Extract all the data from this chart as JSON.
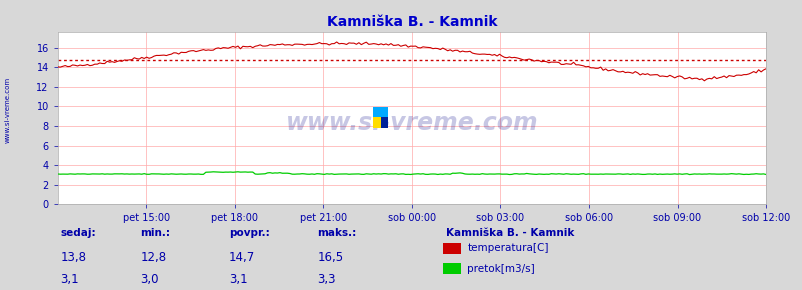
{
  "title": "Kamniška B. - Kamnik",
  "title_color": "#0000cc",
  "background_color": "#d8d8d8",
  "plot_bg_color": "#ffffff",
  "grid_color": "#ffaaaa",
  "watermark": "www.si-vreme.com",
  "xlabel_ticks": [
    "pet 15:00",
    "pet 18:00",
    "pet 21:00",
    "sob 00:00",
    "sob 03:00",
    "sob 06:00",
    "sob 09:00",
    "sob 12:00"
  ],
  "ylim_temp": [
    0,
    17.6
  ],
  "xlim": [
    0,
    287
  ],
  "temp_color": "#cc0000",
  "flow_color": "#00cc00",
  "avg_line_color": "#cc0000",
  "avg_value": 14.7,
  "sidebar_text": "www.si-vreme.com",
  "sidebar_color": "#0000aa",
  "legend_title": "Kamniška B. - Kamnik",
  "legend_items": [
    {
      "label": "temperatura[C]",
      "color": "#cc0000"
    },
    {
      "label": "pretok[m3/s]",
      "color": "#00cc00"
    }
  ],
  "stats": {
    "headers": [
      "sedaj:",
      "min.:",
      "povpr.:",
      "maks.:"
    ],
    "temp_row": [
      "13,8",
      "12,8",
      "14,7",
      "16,5"
    ],
    "flow_row": [
      "3,1",
      "3,0",
      "3,1",
      "3,3"
    ]
  },
  "n_points": 288
}
